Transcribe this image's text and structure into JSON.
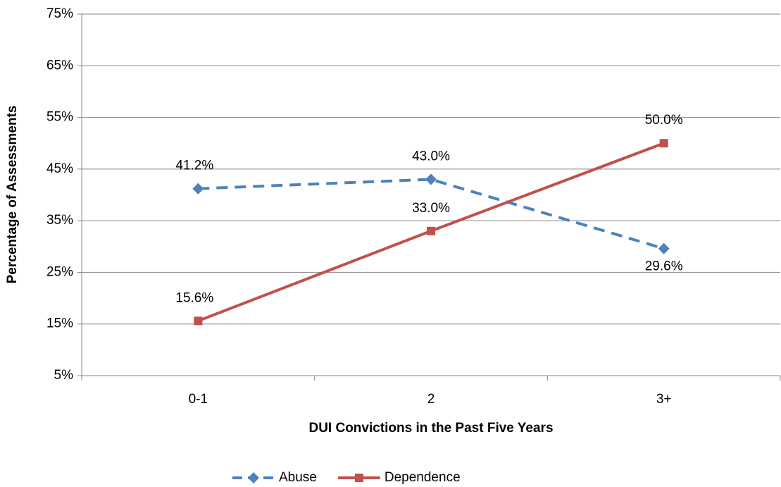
{
  "chart_data": {
    "type": "line",
    "x_label": "DUI Convictions in the Past Five Years",
    "y_label": "Percentage of Assessments",
    "categories": [
      "0-1",
      "2",
      "3+"
    ],
    "series": [
      {
        "name": "Abuse",
        "color": "#4f81bd",
        "dash": true,
        "marker": "diamond",
        "values": [
          41.2,
          43.0,
          29.6
        ],
        "value_labels": [
          "41.2%",
          "43.0%",
          "29.6%"
        ]
      },
      {
        "name": "Dependence",
        "color": "#c0504d",
        "dash": false,
        "marker": "square",
        "values": [
          15.6,
          33.0,
          50.0
        ],
        "value_labels": [
          "15.6%",
          "33.0%",
          "50.0%"
        ]
      }
    ],
    "ylim": [
      5,
      75
    ],
    "yticks": [
      {
        "value": 5,
        "label": "5%"
      },
      {
        "value": 15,
        "label": "15%"
      },
      {
        "value": 25,
        "label": "25%"
      },
      {
        "value": 35,
        "label": "35%"
      },
      {
        "value": 45,
        "label": "45%"
      },
      {
        "value": 55,
        "label": "55%"
      },
      {
        "value": 65,
        "label": "65%"
      },
      {
        "value": 75,
        "label": "75%"
      }
    ],
    "grid": true,
    "legend": "bottom"
  }
}
